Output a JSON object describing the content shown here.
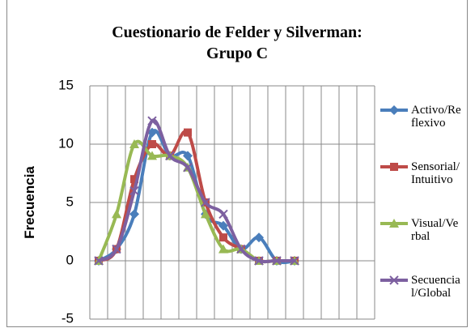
{
  "chart_data": {
    "type": "line",
    "title": "Cuestionario de Felder y Silverman: Grupo C",
    "y_label": "Frecuencia",
    "categories": [
      null,
      null,
      null,
      null,
      null,
      null,
      null,
      null,
      null,
      null,
      null,
      null,
      null,
      null,
      null,
      null
    ],
    "series": [
      {
        "name": "Activo/Reflexivo",
        "color": "#4a7ebb",
        "marker": "diamond",
        "values": [
          0,
          1,
          4,
          11,
          9,
          9,
          4,
          3,
          1,
          2,
          0,
          0,
          null,
          null,
          null,
          null
        ]
      },
      {
        "name": "Sensorial/Intuitivo",
        "color": "#be4b48",
        "marker": "square",
        "values": [
          0,
          1,
          7,
          10,
          9,
          11,
          5,
          2,
          1,
          0,
          0,
          0,
          null,
          null,
          null,
          null
        ]
      },
      {
        "name": "Visual/Verbal",
        "color": "#98b954",
        "marker": "triangle",
        "values": [
          0,
          4,
          10,
          9,
          9,
          8,
          4,
          1,
          1,
          0,
          0,
          0,
          null,
          null,
          null,
          null
        ]
      },
      {
        "name": "Secuencial/Global",
        "color": "#7d60a0",
        "marker": "x",
        "values": [
          0,
          1,
          6,
          12,
          9,
          8,
          5,
          4,
          1,
          0,
          0,
          0,
          null,
          null,
          null,
          null
        ]
      }
    ],
    "ylim": [
      -5,
      15
    ],
    "yticks": [
      -5,
      0,
      5,
      10,
      15
    ],
    "grid": true,
    "smooth": true,
    "legend": "right"
  }
}
